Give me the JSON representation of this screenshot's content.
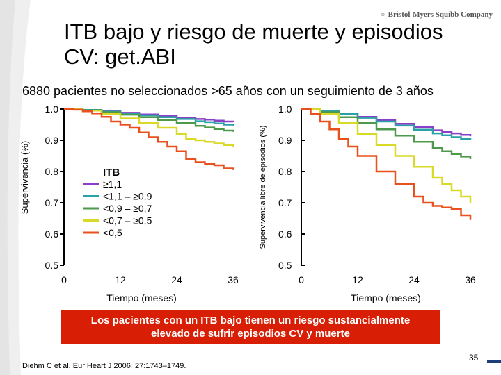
{
  "logo": {
    "text": "Bristol-Myers Squibb Company",
    "icon": "bms-logo-icon"
  },
  "slide": {
    "title_line1": "ITB bajo y riesgo de muerte y episodios",
    "title_line2": "CV: get.ABI",
    "subtitle": "6880 pacientes no seleccionados >65 años con un seguimiento de  3 años",
    "banner_line1": "Los pacientes con un ITB bajo tienen un riesgo sustancialmente",
    "banner_line2": "elevado de sufrir episodios CV y muerte",
    "citation": "Diehm C et al. Eur Heart J 2006; 27:1743–1749.",
    "page_number": "35",
    "colors": {
      "banner": "#d81e05",
      "accent": "#1c3f7a"
    }
  },
  "legend": {
    "title": "ITB",
    "entries": [
      "≥1,1",
      "<1,1 – ≥0,9",
      "<0,9 – ≥0,7",
      "<0,7 – ≥0,5",
      "<0,5"
    ]
  },
  "chart_data": [
    {
      "type": "line",
      "ylabel": "Supervivencia (%)",
      "xlabel": "Tiempo (meses)",
      "xlim": [
        0,
        36
      ],
      "ylim": [
        0.5,
        1.0
      ],
      "xticks": [
        "0",
        "12",
        "24",
        "36"
      ],
      "yticks": [
        "1.0",
        "0.9",
        "0.8",
        "0.7",
        "0.6",
        "0.5"
      ],
      "legend_placement": "inside-center",
      "series": [
        {
          "name": "≥1,1",
          "color": "#8a3fc6",
          "x": [
            0,
            4,
            8,
            12,
            16,
            20,
            24,
            28,
            30,
            32,
            34,
            36
          ],
          "y": [
            1.0,
            0.997,
            0.993,
            0.988,
            0.983,
            0.978,
            0.973,
            0.968,
            0.966,
            0.963,
            0.96,
            0.958
          ]
        },
        {
          "name": "<1,1 – ≥0,9",
          "color": "#2aa0a8",
          "x": [
            0,
            4,
            8,
            12,
            16,
            20,
            24,
            28,
            30,
            32,
            34,
            36
          ],
          "y": [
            1.0,
            0.997,
            0.992,
            0.986,
            0.98,
            0.974,
            0.968,
            0.961,
            0.958,
            0.954,
            0.95,
            0.947
          ]
        },
        {
          "name": "<0,9 – ≥0,7",
          "color": "#4d9a4d",
          "x": [
            0,
            4,
            8,
            12,
            16,
            20,
            24,
            28,
            30,
            32,
            34,
            36
          ],
          "y": [
            1.0,
            0.996,
            0.99,
            0.982,
            0.974,
            0.965,
            0.955,
            0.946,
            0.941,
            0.936,
            0.931,
            0.927
          ]
        },
        {
          "name": "<0,7 – ≥0,5",
          "color": "#d9d92a",
          "x": [
            0,
            4,
            8,
            12,
            16,
            20,
            24,
            26,
            28,
            30,
            32,
            34,
            36
          ],
          "y": [
            1.0,
            0.995,
            0.985,
            0.97,
            0.955,
            0.94,
            0.92,
            0.905,
            0.9,
            0.895,
            0.89,
            0.885,
            0.88
          ]
        },
        {
          "name": "<0,5",
          "color": "#e8501e",
          "x": [
            0,
            2,
            4,
            6,
            8,
            10,
            12,
            14,
            16,
            18,
            20,
            22,
            24,
            26,
            28,
            30,
            32,
            34,
            36
          ],
          "y": [
            1.0,
            0.998,
            0.993,
            0.986,
            0.975,
            0.96,
            0.95,
            0.94,
            0.925,
            0.91,
            0.895,
            0.88,
            0.865,
            0.84,
            0.83,
            0.825,
            0.82,
            0.81,
            0.805
          ]
        }
      ]
    },
    {
      "type": "line",
      "ylabel": "Supervivencia libre de episodios (%)",
      "xlabel": "Tiempo (meses)",
      "xlim": [
        0,
        36
      ],
      "ylim": [
        0.5,
        1.0
      ],
      "xticks": [
        "0",
        "12",
        "24",
        "36"
      ],
      "yticks": [
        "1.0",
        "0.9",
        "0.8",
        "0.7",
        "0.6",
        "0.5"
      ],
      "series": [
        {
          "name": "≥1,1",
          "color": "#8a3fc6",
          "x": [
            0,
            4,
            8,
            12,
            16,
            20,
            24,
            28,
            30,
            32,
            34,
            36
          ],
          "y": [
            1.0,
            0.994,
            0.985,
            0.975,
            0.964,
            0.953,
            0.942,
            0.932,
            0.927,
            0.922,
            0.917,
            0.913
          ]
        },
        {
          "name": "<1,1 – ≥0,9",
          "color": "#2aa0a8",
          "x": [
            0,
            4,
            8,
            12,
            16,
            20,
            24,
            28,
            30,
            32,
            34,
            36
          ],
          "y": [
            1.0,
            0.994,
            0.984,
            0.972,
            0.96,
            0.947,
            0.934,
            0.922,
            0.916,
            0.91,
            0.905,
            0.9
          ]
        },
        {
          "name": "<0,9 – ≥0,7",
          "color": "#4d9a4d",
          "x": [
            0,
            4,
            8,
            12,
            16,
            20,
            24,
            28,
            30,
            32,
            34,
            36
          ],
          "y": [
            1.0,
            0.99,
            0.974,
            0.955,
            0.935,
            0.915,
            0.895,
            0.875,
            0.865,
            0.856,
            0.848,
            0.84
          ]
        },
        {
          "name": "<0,7 – ≥0,5",
          "color": "#d9d92a",
          "x": [
            0,
            4,
            8,
            12,
            16,
            20,
            24,
            28,
            30,
            32,
            34,
            36
          ],
          "y": [
            1.0,
            0.985,
            0.955,
            0.92,
            0.885,
            0.85,
            0.815,
            0.78,
            0.76,
            0.74,
            0.72,
            0.7
          ]
        },
        {
          "name": "<0,5",
          "color": "#e8501e",
          "x": [
            0,
            2,
            4,
            6,
            8,
            10,
            12,
            16,
            20,
            24,
            26,
            28,
            30,
            32,
            34,
            36
          ],
          "y": [
            1.0,
            0.985,
            0.96,
            0.935,
            0.905,
            0.88,
            0.85,
            0.8,
            0.76,
            0.72,
            0.7,
            0.69,
            0.685,
            0.68,
            0.66,
            0.645
          ]
        }
      ]
    }
  ]
}
